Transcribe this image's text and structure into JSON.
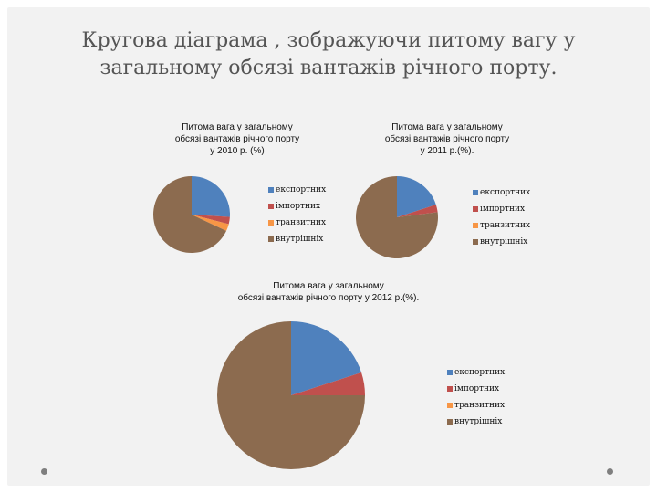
{
  "slide": {
    "title_line1": "Кругова діаграма , зображуючи питому вагу у",
    "title_line2": "загальному обсязі вантажів річного порту."
  },
  "colors": {
    "exports": "#4f81bd",
    "imports": "#c0504d",
    "transit": "#f79646",
    "domestic": "#8c6b4f"
  },
  "chart_data": [
    {
      "type": "pie",
      "title_lines": [
        "Питома вага у загальному",
        "обсязі вантажів річного порту",
        "у 2010 р. (%)"
      ],
      "categories": [
        "експортних",
        "імпортних",
        "транзитних",
        "внутрішніх"
      ],
      "values": [
        26,
        3,
        3,
        68
      ]
    },
    {
      "type": "pie",
      "title_lines": [
        "Питома вага у загальному",
        "обсязі вантажів річного  порту",
        "у 2011 р.(%)."
      ],
      "categories": [
        "експортних",
        "імпортних",
        "транзитних",
        "внутрішніх"
      ],
      "values": [
        20,
        3,
        0,
        77
      ]
    },
    {
      "type": "pie",
      "title_lines": [
        "Питома вага у загальному",
        "обсязі вантажів річного порту у 2012 р.(%)."
      ],
      "categories": [
        "експортних",
        "імпортних",
        "транзитних",
        "внутрішніх"
      ],
      "values": [
        20,
        5,
        0,
        75
      ]
    }
  ]
}
